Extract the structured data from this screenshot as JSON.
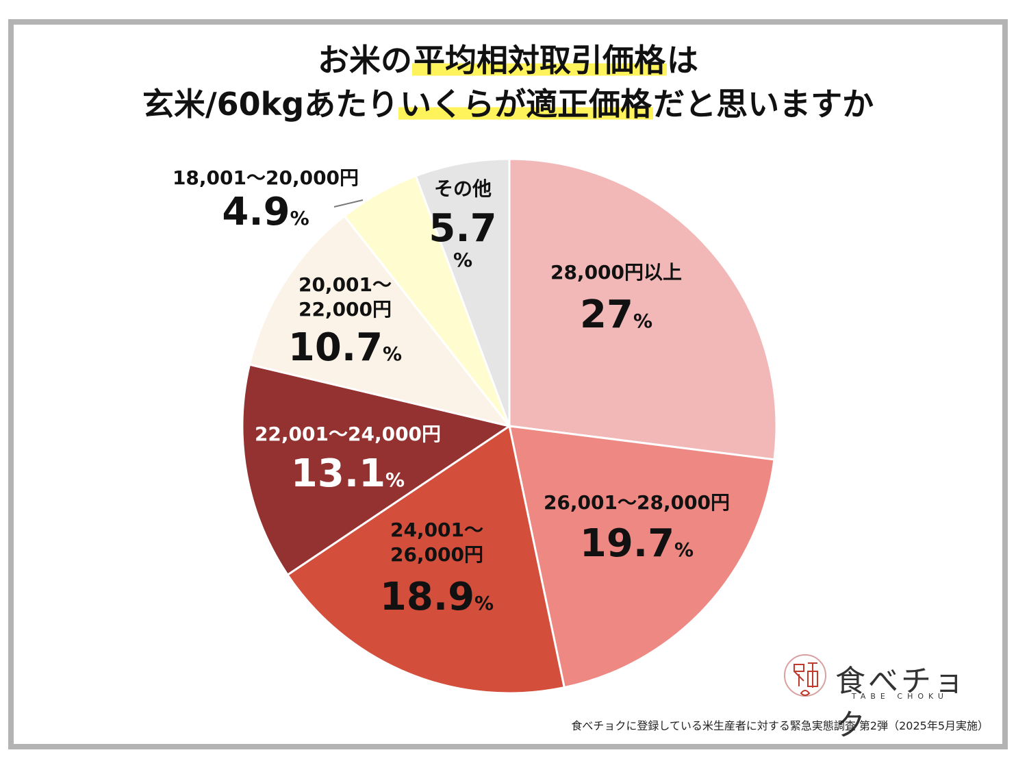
{
  "title": {
    "line1_pre": "お米の",
    "line1_hl": "平均相対取引価格",
    "line1_post": "は",
    "line2_pre": "玄米/60kgあたり",
    "line2_hl": "いくらが適正価格",
    "line2_post": "だと思いますか"
  },
  "chart_data": {
    "type": "pie",
    "start": "top, clockwise",
    "slices": [
      {
        "label": "28,000円以上",
        "value": 27,
        "value_label": "27",
        "color": "#f2b8b8"
      },
      {
        "label": "26,001～28,000円",
        "value": 19.7,
        "value_label": "19.7",
        "color": "#ee8883"
      },
      {
        "label": "24,001～26,000円",
        "value": 18.9,
        "value_label": "18.9",
        "color": "#d44e3c"
      },
      {
        "label": "22,001～24,000円",
        "value": 13.1,
        "value_label": "13.1",
        "color": "#943231"
      },
      {
        "label": "20,001～22,000円",
        "value": 10.7,
        "value_label": "10.7",
        "color": "#fbf3e7"
      },
      {
        "label": "18,001～20,000円",
        "value": 4.9,
        "value_label": "4.9",
        "color": "#fffdd0"
      },
      {
        "label": "その他",
        "value": 5.7,
        "value_label": "5.7",
        "color": "#e5e5e5"
      }
    ],
    "unit": "%"
  },
  "labels": {
    "s0_cat": "28,000円以上",
    "s1_cat": "26,001～28,000円",
    "s2_cat1": "24,001～",
    "s2_cat2": "26,000円",
    "s3_cat": "22,001～24,000円",
    "s4_cat1": "20,001～",
    "s4_cat2": "22,000円",
    "s5_cat": "18,001～20,000円",
    "s6_cat": "その他",
    "unit": "%"
  },
  "logo": {
    "name": "食べチョク",
    "sub": "TABE CHOKU",
    "mark": "良直"
  },
  "source": "食べチョクに登録している米生産者に対する緊急実態調査 第2弾（2025年5月実施）"
}
